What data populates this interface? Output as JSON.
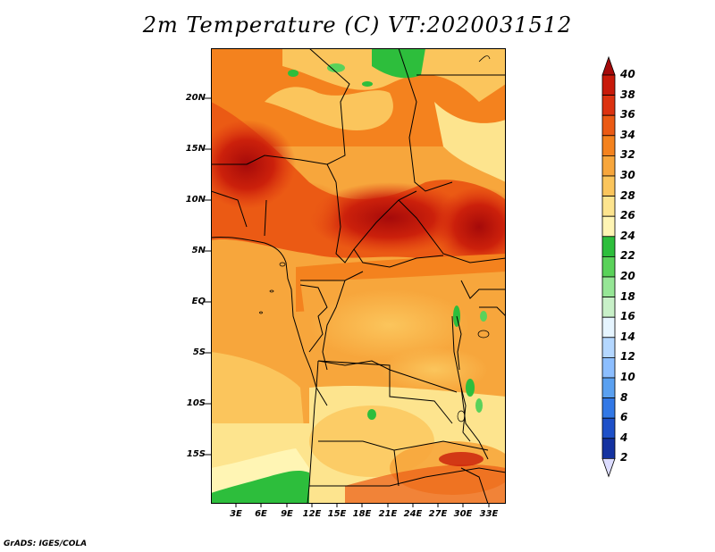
{
  "title": "2m Temperature (C) VT:2020031512",
  "credit": "GrADS: IGES/COLA",
  "lat_labels": [
    "20N",
    "15N",
    "10N",
    "5N",
    "EQ",
    "5S",
    "10S",
    "15S"
  ],
  "lon_labels": [
    "3E",
    "6E",
    "9E",
    "12E",
    "15E",
    "18E",
    "21E",
    "24E",
    "27E",
    "30E",
    "33E"
  ],
  "colorbar": {
    "labels": [
      "40",
      "38",
      "36",
      "34",
      "32",
      "30",
      "28",
      "26",
      "24",
      "22",
      "20",
      "18",
      "16",
      "14",
      "12",
      "10",
      "8",
      "6",
      "4",
      "2"
    ],
    "colors": [
      "#a50a0a",
      "#c81a0a",
      "#dc3210",
      "#eb5a14",
      "#f4821e",
      "#f7a63c",
      "#fbc55c",
      "#fde48e",
      "#fff5b4",
      "#2dbe3c",
      "#5ad25a",
      "#96e696",
      "#c8f0c8",
      "#e6f5ff",
      "#b4d7ff",
      "#8cbeff",
      "#5aa0f0",
      "#3278e6",
      "#1e50c8",
      "#1432a0",
      "#0a1464"
    ]
  }
}
